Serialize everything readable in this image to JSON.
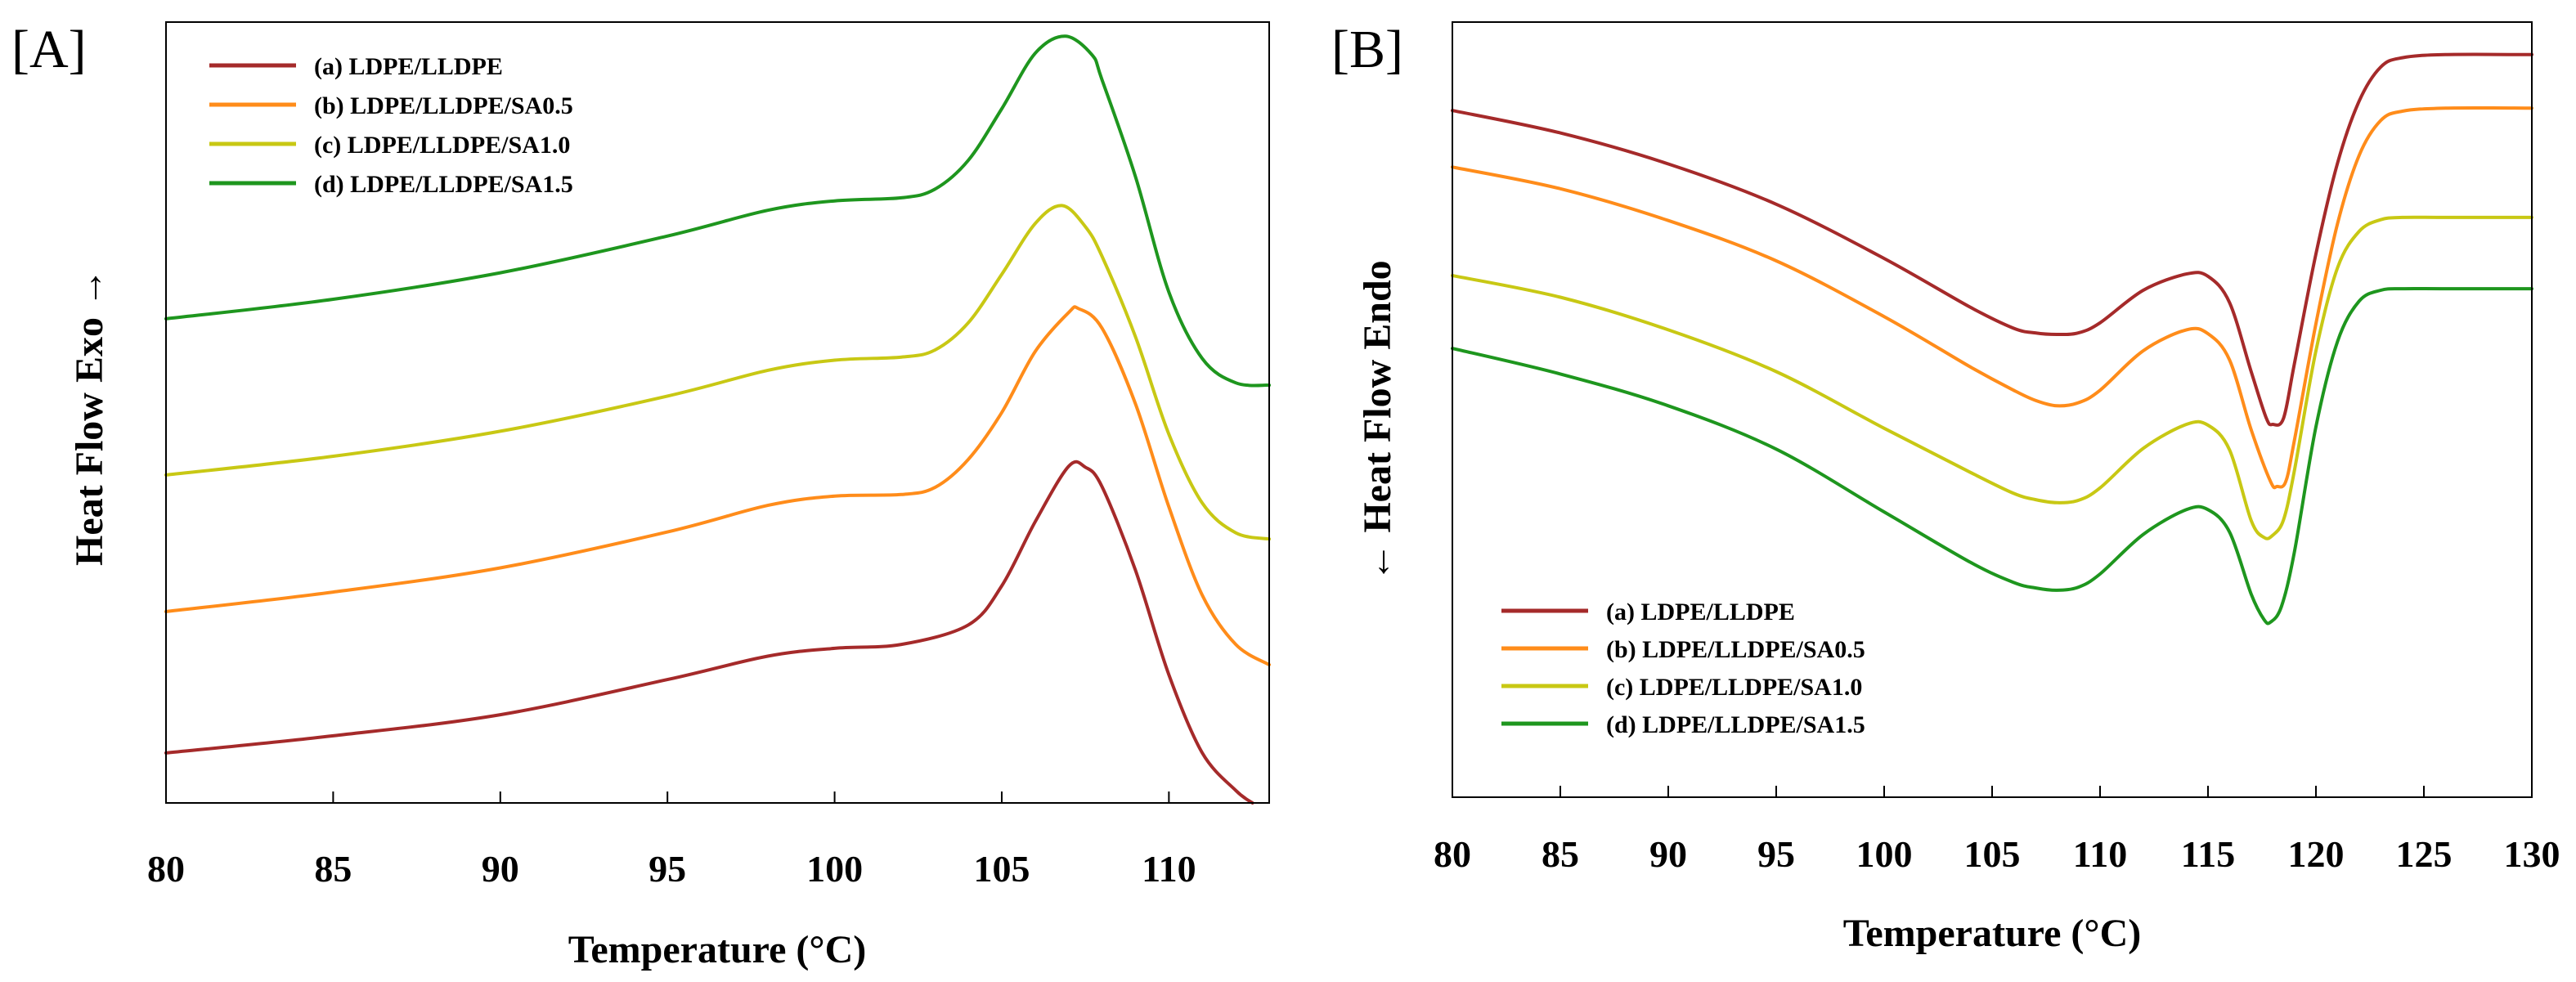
{
  "chart_data": [
    {
      "type": "line",
      "panel_label": "[A]",
      "xlabel": "Temperature (°C)",
      "ylabel": "Heat Flow Exo ",
      "ylabel_arrow": "→",
      "xlim": [
        80,
        113
      ],
      "ylim": [
        0,
        1
      ],
      "x_ticks": [
        "80",
        "85",
        "90",
        "95",
        "100",
        "105",
        "110"
      ],
      "y_ticks_shown": false,
      "legend_position": "top-left",
      "series": [
        {
          "name": "(a) LDPE/LLDPE",
          "color": "#a52a2a",
          "x": [
            80,
            85,
            90,
            95,
            98,
            100,
            102,
            104,
            105,
            106,
            107,
            107.5,
            108,
            109,
            110,
            111,
            112,
            112.5
          ],
          "y": [
            0.064,
            0.086,
            0.113,
            0.158,
            0.188,
            0.198,
            0.203,
            0.228,
            0.278,
            0.36,
            0.431,
            0.43,
            0.405,
            0.298,
            0.164,
            0.064,
            0.016,
            0.0
          ]
        },
        {
          "name": "(b) LDPE/LLDPE/SA0.5",
          "color": "#ff8c1a",
          "x": [
            80,
            85,
            90,
            95,
            98,
            100,
            102,
            103,
            104,
            105,
            106,
            107,
            107.3,
            108,
            109,
            110,
            111,
            112,
            113
          ],
          "y": [
            0.245,
            0.27,
            0.301,
            0.347,
            0.381,
            0.393,
            0.395,
            0.404,
            0.44,
            0.5,
            0.578,
            0.628,
            0.633,
            0.608,
            0.511,
            0.379,
            0.266,
            0.203,
            0.177
          ]
        },
        {
          "name": "(c) LDPE/LLDPE/SA1.0",
          "color": "#c8c814",
          "x": [
            80,
            85,
            90,
            95,
            98,
            100,
            102,
            103,
            104,
            105,
            106,
            106.8,
            107.5,
            108,
            109,
            110,
            111,
            112,
            113
          ],
          "y": [
            0.42,
            0.444,
            0.476,
            0.521,
            0.554,
            0.567,
            0.571,
            0.58,
            0.615,
            0.677,
            0.742,
            0.765,
            0.738,
            0.7,
            0.597,
            0.472,
            0.384,
            0.346,
            0.338
          ]
        },
        {
          "name": "(d) LDPE/LLDPE/SA1.5",
          "color": "#1e961e",
          "x": [
            80,
            85,
            90,
            95,
            98,
            100,
            102,
            103,
            104,
            105,
            106,
            106.9,
            107.7,
            108,
            109,
            110,
            111,
            112,
            113
          ],
          "y": [
            0.62,
            0.645,
            0.679,
            0.726,
            0.759,
            0.771,
            0.775,
            0.786,
            0.823,
            0.889,
            0.96,
            0.982,
            0.958,
            0.926,
            0.802,
            0.654,
            0.569,
            0.538,
            0.535
          ]
        }
      ]
    },
    {
      "type": "line",
      "panel_label": "[B]",
      "xlabel": "Temperature (°C)",
      "ylabel": " Heat Flow Endo",
      "ylabel_arrow": "←",
      "xlim": [
        80,
        130
      ],
      "ylim": [
        0,
        1
      ],
      "x_ticks": [
        "80",
        "85",
        "90",
        "95",
        "100",
        "105",
        "110",
        "115",
        "120",
        "125",
        "130"
      ],
      "y_ticks_shown": false,
      "legend_position": "bottom-left",
      "series": [
        {
          "name": "(a) LDPE/LLDPE",
          "color": "#a52a2a",
          "x": [
            80,
            85,
            90,
            95,
            100,
            104,
            106,
            107,
            108,
            109,
            110,
            112,
            114,
            115,
            116,
            117,
            117.7,
            118,
            118.5,
            119,
            120,
            121,
            122,
            123,
            124,
            126,
            130
          ],
          "y": [
            0.886,
            0.857,
            0.817,
            0.765,
            0.695,
            0.632,
            0.605,
            0.599,
            0.597,
            0.599,
            0.612,
            0.654,
            0.675,
            0.672,
            0.638,
            0.549,
            0.489,
            0.481,
            0.489,
            0.559,
            0.701,
            0.818,
            0.898,
            0.942,
            0.954,
            0.958,
            0.958
          ]
        },
        {
          "name": "(b) LDPE/LLDPE/SA0.5",
          "color": "#ff8c1a",
          "x": [
            80,
            85,
            90,
            95,
            100,
            104,
            106,
            107,
            108,
            109,
            110,
            112,
            114,
            115,
            116,
            117,
            117.9,
            118.2,
            118.6,
            119,
            120,
            121,
            122,
            123,
            124,
            126,
            130
          ],
          "y": [
            0.813,
            0.785,
            0.744,
            0.692,
            0.62,
            0.555,
            0.525,
            0.512,
            0.505,
            0.509,
            0.525,
            0.576,
            0.603,
            0.598,
            0.564,
            0.474,
            0.407,
            0.401,
            0.407,
            0.46,
            0.611,
            0.74,
            0.828,
            0.873,
            0.885,
            0.889,
            0.889
          ]
        },
        {
          "name": "(c) LDPE/LLDPE/SA1.0",
          "color": "#c8c814",
          "x": [
            80,
            85,
            90,
            95,
            100,
            104,
            106,
            107,
            108,
            109,
            110,
            112,
            114,
            115,
            116,
            117,
            117.6,
            118,
            118.5,
            119,
            120,
            121,
            122,
            123,
            124,
            126,
            130
          ],
          "y": [
            0.673,
            0.645,
            0.603,
            0.549,
            0.476,
            0.419,
            0.392,
            0.384,
            0.38,
            0.383,
            0.399,
            0.45,
            0.481,
            0.48,
            0.448,
            0.357,
            0.335,
            0.338,
            0.358,
            0.421,
            0.576,
            0.683,
            0.73,
            0.745,
            0.748,
            0.748,
            0.748
          ]
        },
        {
          "name": "(d) LDPE/LLDPE/SA1.5",
          "color": "#1e961e",
          "x": [
            80,
            85,
            90,
            95,
            100,
            104,
            106,
            107,
            108,
            109,
            110,
            112,
            114,
            115,
            116,
            117,
            117.6,
            117.9,
            118.4,
            119,
            120,
            121,
            122,
            123,
            124,
            126,
            130
          ],
          "y": [
            0.579,
            0.546,
            0.505,
            0.449,
            0.368,
            0.303,
            0.277,
            0.27,
            0.267,
            0.271,
            0.288,
            0.339,
            0.371,
            0.371,
            0.342,
            0.262,
            0.229,
            0.226,
            0.246,
            0.316,
            0.478,
            0.588,
            0.64,
            0.654,
            0.656,
            0.656,
            0.656
          ]
        }
      ]
    }
  ]
}
